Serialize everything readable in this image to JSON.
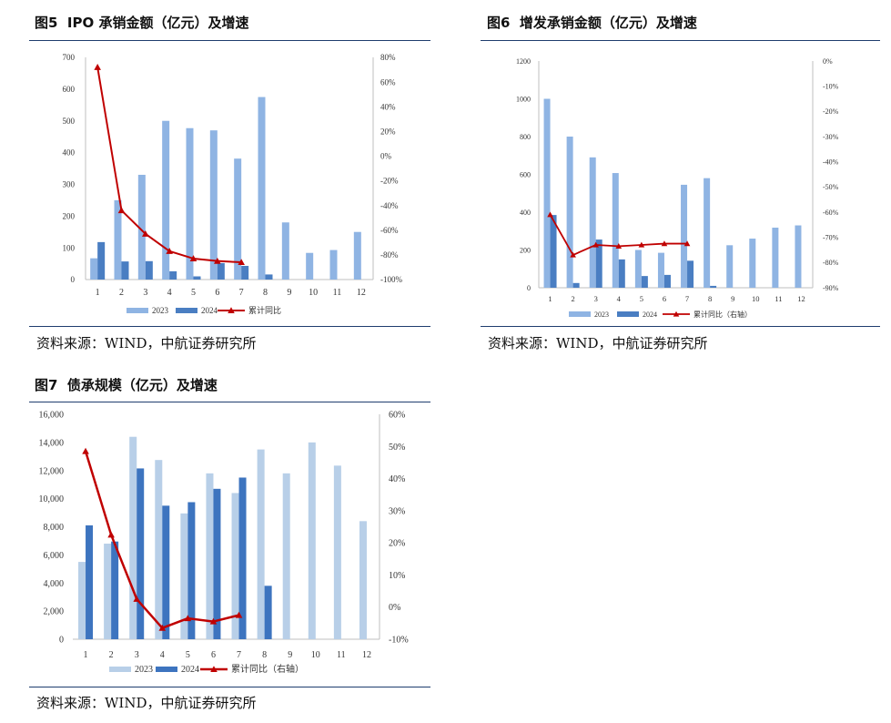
{
  "colors": {
    "c2023": "#8fb4e3",
    "c2024": "#4a7ec2",
    "line": "#c00000",
    "rule": "#1f3d6e",
    "c2023_light": "#b8cfe8",
    "c2024_dark": "#3d74bf"
  },
  "source_text": "资料来源：WIND，中航证券研究所",
  "charts": [
    {
      "fig_label": "图5",
      "title": "IPO 承销金额（亿元）及增速",
      "legend": {
        "s1": "2023",
        "s2": "2024",
        "s3": "累计同比"
      },
      "months": [
        "1",
        "2",
        "3",
        "4",
        "5",
        "6",
        "7",
        "8",
        "9",
        "10",
        "11",
        "12"
      ],
      "left_ticks": [
        "0",
        "100",
        "200",
        "300",
        "400",
        "500",
        "600",
        "700"
      ],
      "right_ticks": [
        "-100%",
        "-80%",
        "-60%",
        "-40%",
        "-20%",
        "0%",
        "20%",
        "40%",
        "60%",
        "80%"
      ]
    },
    {
      "fig_label": "图6",
      "title": "增发承销金额（亿元）及增速",
      "legend": {
        "s1": "2023",
        "s2": "2024",
        "s3": "累计同比（右轴）"
      },
      "months": [
        "1",
        "2",
        "3",
        "4",
        "5",
        "6",
        "7",
        "8",
        "9",
        "10",
        "11",
        "12"
      ],
      "left_ticks": [
        "0",
        "200",
        "400",
        "600",
        "800",
        "1000",
        "1200"
      ],
      "right_ticks": [
        "-90%",
        "-80%",
        "-70%",
        "-60%",
        "-50%",
        "-40%",
        "-30%",
        "-20%",
        "-10%",
        "0%"
      ]
    },
    {
      "fig_label": "图7",
      "title": "债承规模（亿元）及增速",
      "legend": {
        "s1": "2023",
        "s2": "2024",
        "s3": "累计同比（右轴）"
      },
      "months": [
        "1",
        "2",
        "3",
        "4",
        "5",
        "6",
        "7",
        "8",
        "9",
        "10",
        "11",
        "12"
      ],
      "left_ticks": [
        "0",
        "2,000",
        "4,000",
        "6,000",
        "8,000",
        "10,000",
        "12,000",
        "14,000",
        "16,000"
      ],
      "right_ticks": [
        "-10%",
        "0%",
        "10%",
        "20%",
        "30%",
        "40%",
        "50%",
        "60%"
      ]
    }
  ],
  "chart_data": [
    {
      "type": "bar+line",
      "title": "IPO 承销金额（亿元）及增速",
      "categories": [
        "1",
        "2",
        "3",
        "4",
        "5",
        "6",
        "7",
        "8",
        "9",
        "10",
        "11",
        "12"
      ],
      "series": [
        {
          "name": "2023",
          "axis": "left",
          "values": [
            67,
            250,
            330,
            500,
            477,
            470,
            381,
            575,
            180,
            84,
            93,
            150
          ]
        },
        {
          "name": "2024",
          "axis": "left",
          "values": [
            118,
            57,
            58,
            26,
            10,
            52,
            43,
            16,
            null,
            null,
            null,
            null
          ]
        },
        {
          "name": "累计同比",
          "axis": "right",
          "type": "line",
          "values": [
            72,
            -44,
            -63,
            -77,
            -83,
            -85,
            -86,
            null,
            null,
            null,
            null,
            null
          ]
        }
      ],
      "ylim_left": [
        0,
        700
      ],
      "ylim_right": [
        -100,
        80
      ]
    },
    {
      "type": "bar+line",
      "title": "增发承销金额（亿元）及增速",
      "categories": [
        "1",
        "2",
        "3",
        "4",
        "5",
        "6",
        "7",
        "8",
        "9",
        "10",
        "11",
        "12"
      ],
      "series": [
        {
          "name": "2023",
          "axis": "left",
          "values": [
            1000,
            800,
            690,
            607,
            200,
            185,
            545,
            580,
            225,
            260,
            318,
            330
          ]
        },
        {
          "name": "2024",
          "axis": "left",
          "values": [
            385,
            25,
            255,
            150,
            62,
            68,
            143,
            10,
            null,
            null,
            null,
            null
          ]
        },
        {
          "name": "累计同比（右轴）",
          "axis": "right",
          "type": "line",
          "values": [
            -61,
            -77,
            -73,
            -73.5,
            -73,
            -72.5,
            -72.5,
            null,
            null,
            null,
            null,
            null
          ]
        }
      ],
      "ylim_left": [
        0,
        1200
      ],
      "ylim_right": [
        -90,
        0
      ]
    },
    {
      "type": "bar+line",
      "title": "债承规模（亿元）及增速",
      "categories": [
        "1",
        "2",
        "3",
        "4",
        "5",
        "6",
        "7",
        "8",
        "9",
        "10",
        "11",
        "12"
      ],
      "series": [
        {
          "name": "2023",
          "axis": "left",
          "values": [
            5500,
            6800,
            14400,
            12750,
            8950,
            11800,
            10400,
            13500,
            11800,
            14000,
            12350,
            8400
          ]
        },
        {
          "name": "2024",
          "axis": "left",
          "values": [
            8100,
            6950,
            12150,
            9500,
            9750,
            10700,
            11500,
            3800,
            null,
            null,
            null,
            null
          ]
        },
        {
          "name": "累计同比（右轴）",
          "axis": "right",
          "type": "line",
          "values": [
            48.5,
            22.5,
            2.5,
            -6.5,
            -3.5,
            -4.5,
            -2.5,
            null,
            null,
            null,
            null,
            null
          ]
        }
      ],
      "ylim_left": [
        0,
        16000
      ],
      "ylim_right": [
        -10,
        60
      ]
    }
  ]
}
